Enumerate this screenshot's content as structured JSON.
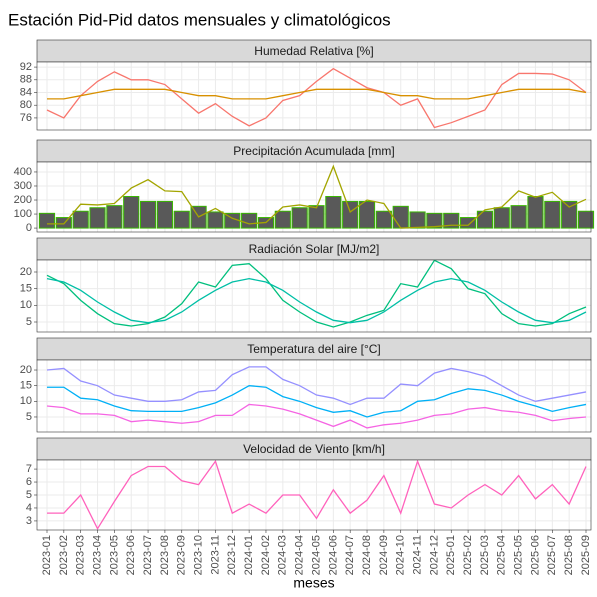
{
  "chart_data": {
    "type": "facet",
    "title": "Estación Pid-Pid datos mensuales y climatológicos",
    "x_label": "meses",
    "categories": [
      "2023-01",
      "2023-02",
      "2023-03",
      "2023-04",
      "2023-05",
      "2023-06",
      "2023-07",
      "2023-08",
      "2023-09",
      "2023-10",
      "2023-11",
      "2023-12",
      "2024-01",
      "2024-02",
      "2024-03",
      "2024-04",
      "2024-05",
      "2024-06",
      "2024-07",
      "2024-08",
      "2024-09",
      "2024-10",
      "2024-11",
      "2024-12",
      "2025-01",
      "2025-02",
      "2025-03",
      "2025-04",
      "2025-05",
      "2025-06",
      "2025-07",
      "2025-08",
      "2025-09"
    ],
    "grid": true,
    "panels": [
      {
        "title": "Humedad Relativa [%]",
        "ylim": [
          72.2,
          93.6
        ],
        "yticks": [
          76,
          80,
          84,
          88,
          92
        ],
        "series": [
          {
            "type": "line",
            "color": "#f8766d",
            "values": [
              78.5,
              76,
              83,
              87.5,
              90.5,
              88,
              88,
              86.5,
              82,
              77.5,
              80.5,
              76.5,
              73.5,
              76,
              81.5,
              83,
              87.5,
              91.5,
              88.5,
              85.5,
              84,
              80,
              82,
              73,
              74.5,
              76.5,
              78.5,
              86.5,
              90,
              90,
              89.8,
              88,
              84
            ]
          },
          {
            "type": "line",
            "color": "#d89000",
            "values": [
              82,
              82,
              83,
              84,
              85,
              85,
              85,
              85,
              84,
              83,
              83,
              82,
              82,
              82,
              83,
              84,
              85,
              85,
              85,
              85,
              84,
              83,
              83,
              82,
              82,
              82,
              83,
              84,
              85,
              85,
              85,
              85,
              84
            ]
          }
        ]
      },
      {
        "title": "Precipitación Acumulada [mm]",
        "ylim": [
          -28,
          471
        ],
        "yticks": [
          0,
          100,
          200,
          300,
          400
        ],
        "series": [
          {
            "type": "bar",
            "color": "#39b600",
            "fill": "#595959",
            "values": [
              105,
              75,
              120,
              145,
              160,
              225,
              190,
              190,
              120,
              155,
              115,
              105,
              105,
              75,
              120,
              145,
              160,
              225,
              190,
              190,
              120,
              155,
              115,
              105,
              105,
              75,
              120,
              145,
              160,
              225,
              190,
              190,
              120
            ]
          },
          {
            "type": "line",
            "color": "#a3a500",
            "values": [
              30,
              30,
              170,
              165,
              175,
              285,
              345,
              265,
              260,
              80,
              140,
              70,
              30,
              40,
              150,
              165,
              145,
              440,
              115,
              200,
              175,
              0,
              5,
              10,
              20,
              20,
              130,
              150,
              265,
              220,
              255,
              150,
              205
            ]
          }
        ]
      },
      {
        "title": "Radiación Solar [MJ/m2]",
        "ylim": [
          2,
          23.6
        ],
        "yticks": [
          5,
          10,
          15,
          20
        ],
        "series": [
          {
            "type": "line",
            "color": "#00bf7d",
            "values": [
              19,
              16.5,
              11.5,
              7.5,
              4.5,
              3.8,
              4.5,
              6.5,
              10.5,
              17,
              15.5,
              22,
              22.5,
              18,
              11.5,
              8,
              5,
              3.5,
              5,
              7,
              8.5,
              16.5,
              15.5,
              23.5,
              21,
              15,
              13.5,
              7.5,
              4.5,
              3.8,
              4.5,
              7.5,
              9.5
            ]
          },
          {
            "type": "line",
            "color": "#00bfa6",
            "values": [
              18,
              17,
              14.5,
              11,
              8,
              5.5,
              4.8,
              5.5,
              8,
              11.5,
              14.5,
              17,
              18,
              17,
              14.5,
              11,
              8,
              5.5,
              4.8,
              5.5,
              8,
              11.5,
              14.5,
              17,
              18,
              17,
              14.5,
              11,
              8,
              5.5,
              4.8,
              5.5,
              8
            ]
          }
        ]
      },
      {
        "title": "Temperatura del aire [°C]",
        "ylim": [
          0.2,
          23.2
        ],
        "yticks": [
          5,
          10,
          15,
          20
        ],
        "series": [
          {
            "type": "line",
            "color": "#9590ff",
            "values": [
              20,
              20.5,
              16.5,
              15,
              12,
              11,
              10,
              10,
              10.5,
              13,
              13.5,
              18.5,
              21,
              21,
              17,
              15,
              12,
              11,
              9,
              11,
              11,
              15.5,
              15,
              19,
              20.5,
              19.5,
              18,
              15,
              12,
              10,
              11,
              12,
              13
            ]
          },
          {
            "type": "line",
            "color": "#00b0f6",
            "values": [
              14.5,
              14.5,
              11,
              10.5,
              8.5,
              7,
              6.8,
              6.8,
              6.8,
              8,
              9.5,
              12,
              15,
              14.5,
              11.5,
              10,
              8,
              6.5,
              7,
              5,
              6.5,
              7,
              10,
              10.5,
              12.5,
              14,
              13.5,
              12,
              10,
              8.5,
              6.8,
              8,
              9
            ]
          },
          {
            "type": "line",
            "color": "#f564e3",
            "values": [
              8.5,
              8,
              6,
              6,
              5.5,
              3.5,
              4,
              3.5,
              3,
              3.5,
              5.5,
              5.5,
              9,
              8.5,
              7.5,
              6,
              4,
              2,
              4,
              1.5,
              2.5,
              3,
              4,
              5.5,
              6,
              7.5,
              8,
              7,
              6.5,
              5.5,
              3.8,
              4.5,
              5
            ]
          }
        ]
      },
      {
        "title": "Velocidad de Viento [km/h]",
        "ylim": [
          2.3,
          7.7
        ],
        "yticks": [
          3,
          4,
          5,
          6,
          7
        ],
        "series": [
          {
            "type": "line",
            "color": "#ff62bc",
            "values": [
              3.6,
              3.6,
              5,
              2.4,
              4.5,
              6.5,
              7.2,
              7.2,
              6.1,
              5.8,
              7.6,
              3.6,
              4.3,
              3.6,
              5,
              5,
              3.2,
              5.4,
              3.6,
              4.6,
              6.5,
              3.6,
              7.6,
              4.3,
              4,
              5,
              5.8,
              5,
              6.5,
              4.7,
              5.8,
              4.3,
              7.2
            ]
          }
        ]
      }
    ]
  }
}
